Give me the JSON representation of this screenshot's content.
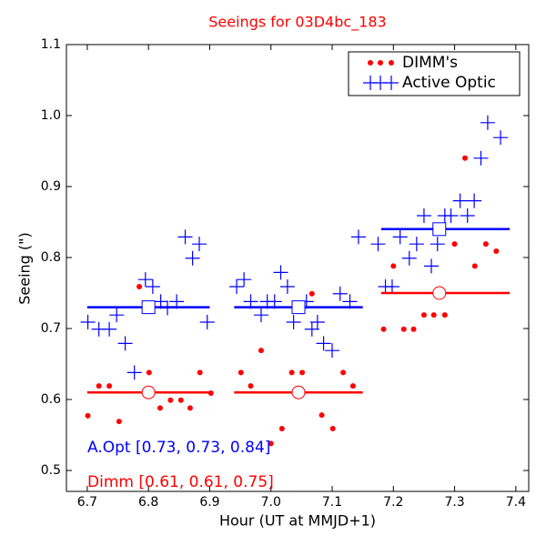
{
  "chart_data": {
    "type": "scatter",
    "title": "Seeings for 03D4bc_183",
    "xlabel": "Hour (UT at MMJD+1)",
    "ylabel": "Seeing (\")",
    "xlim": [
      6.666,
      7.421
    ],
    "ylim": [
      0.4705,
      1.1
    ],
    "xticks": [
      {
        "value": 6.7,
        "label": "6.7"
      },
      {
        "value": 6.8,
        "label": "6.8"
      },
      {
        "value": 6.9,
        "label": "6.9"
      },
      {
        "value": 7,
        "label": "7.0"
      },
      {
        "value": 7.1,
        "label": "7.1"
      },
      {
        "value": 7.2,
        "label": "7.2"
      },
      {
        "value": 7.3,
        "label": "7.3"
      },
      {
        "value": 7.4,
        "label": "7.4"
      }
    ],
    "yticks": [
      0.5,
      0.6,
      0.7,
      0.8,
      0.9,
      {
        "value": 1,
        "label": "1.0"
      },
      1.1
    ],
    "legend": "upper right",
    "series": [
      {
        "name": "DIMM's",
        "color": "#ff0000",
        "marker": "dot",
        "x": [
          6.701,
          6.719,
          6.736,
          6.752,
          6.785,
          6.801,
          6.819,
          6.836,
          6.853,
          6.868,
          6.884,
          6.902,
          6.951,
          6.967,
          6.984,
          7.0,
          7.018,
          7.034,
          7.051,
          7.067,
          7.083,
          7.101,
          7.118,
          7.134,
          7.184,
          7.2,
          7.217,
          7.233,
          7.25,
          7.266,
          7.284,
          7.3,
          7.317,
          7.333,
          7.351,
          7.368
        ],
        "values": [
          0.577,
          0.619,
          0.619,
          0.569,
          0.759,
          0.638,
          0.588,
          0.599,
          0.599,
          0.588,
          0.638,
          0.609,
          0.638,
          0.619,
          0.669,
          0.538,
          0.559,
          0.638,
          0.638,
          0.749,
          0.578,
          0.559,
          0.638,
          0.619,
          0.699,
          0.788,
          0.699,
          0.699,
          0.719,
          0.719,
          0.719,
          0.819,
          0.94,
          0.788,
          0.819,
          0.809
        ]
      },
      {
        "name": "Active Optic",
        "color": "#0000ff",
        "marker": "plus",
        "x": [
          6.701,
          6.719,
          6.736,
          6.748,
          6.762,
          6.777,
          6.795,
          6.807,
          6.82,
          6.831,
          6.846,
          6.86,
          6.872,
          6.883,
          6.896,
          6.944,
          6.956,
          6.967,
          6.984,
          6.994,
          7.006,
          7.016,
          7.027,
          7.037,
          7.058,
          7.067,
          7.076,
          7.086,
          7.1,
          7.113,
          7.129,
          7.143,
          7.175,
          7.187,
          7.198,
          7.211,
          7.226,
          7.238,
          7.25,
          7.262,
          7.272,
          7.284,
          7.294,
          7.309,
          7.321,
          7.332,
          7.343,
          7.354,
          7.375
        ],
        "values": [
          0.709,
          0.699,
          0.699,
          0.719,
          0.679,
          0.638,
          0.769,
          0.759,
          0.738,
          0.729,
          0.738,
          0.829,
          0.799,
          0.819,
          0.709,
          0.759,
          0.769,
          0.738,
          0.719,
          0.738,
          0.738,
          0.779,
          0.759,
          0.709,
          0.738,
          0.699,
          0.709,
          0.679,
          0.669,
          0.749,
          0.738,
          0.829,
          0.819,
          0.759,
          0.759,
          0.829,
          0.799,
          0.819,
          0.859,
          0.788,
          0.819,
          0.859,
          0.859,
          0.88,
          0.859,
          0.88,
          0.94,
          0.99,
          0.969
        ]
      }
    ],
    "bands": [
      {
        "x": [
          6.7,
          6.9
        ],
        "mark_x": 6.8,
        "aopt": 0.73,
        "dimm": 0.61
      },
      {
        "x": [
          6.94,
          7.15
        ],
        "mark_x": 7.045,
        "aopt": 0.73,
        "dimm": 0.61
      },
      {
        "x": [
          7.18,
          7.39
        ],
        "mark_x": 7.275,
        "aopt": 0.84,
        "dimm": 0.75
      }
    ],
    "annotations": [
      {
        "text": "A.Opt [0.73, 0.73, 0.84]",
        "color": "#0000ff"
      },
      {
        "text": "Dimm [0.61, 0.61, 0.75]",
        "color": "#ff0000"
      }
    ]
  }
}
